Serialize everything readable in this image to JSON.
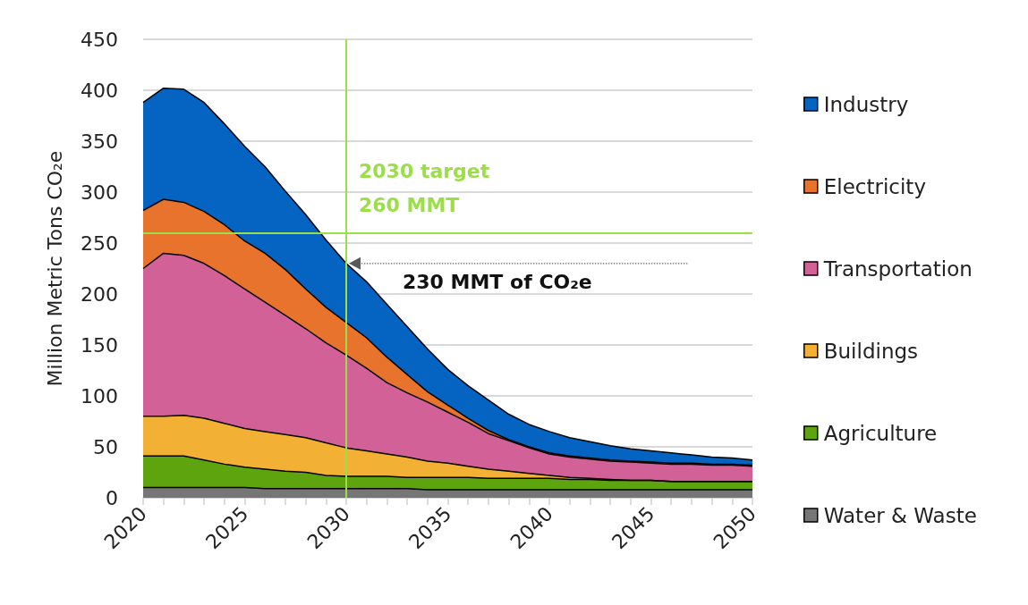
{
  "chart_data": {
    "type": "area",
    "stacked": true,
    "marker": "none",
    "grid": "y",
    "legend": "right",
    "ylabel": "Million Metric Tons CO₂e",
    "x": [
      2020,
      2021,
      2022,
      2023,
      2024,
      2025,
      2026,
      2027,
      2028,
      2029,
      2030,
      2031,
      2032,
      2033,
      2034,
      2035,
      2036,
      2037,
      2038,
      2039,
      2040,
      2041,
      2042,
      2043,
      2044,
      2045,
      2046,
      2047,
      2048,
      2049,
      2050
    ],
    "xlim": [
      2020,
      2050
    ],
    "xticks": [
      2020,
      2025,
      2030,
      2035,
      2040,
      2045,
      2050
    ],
    "ylim": [
      0,
      450
    ],
    "yticks": [
      0,
      50,
      100,
      150,
      200,
      250,
      300,
      350,
      400,
      450
    ],
    "series": [
      {
        "name": "Water & Waste",
        "color": "#767676",
        "values": [
          10,
          10,
          10,
          10,
          10,
          10,
          9,
          9,
          9,
          9,
          9,
          9,
          9,
          9,
          8,
          8,
          8,
          8,
          8,
          8,
          8,
          8,
          8,
          8,
          8,
          8,
          8,
          8,
          8,
          8,
          8
        ]
      },
      {
        "name": "Agriculture",
        "color": "#5ea40f",
        "values": [
          31,
          31,
          31,
          27,
          23,
          20,
          19,
          17,
          16,
          13,
          12,
          12,
          12,
          11,
          12,
          12,
          12,
          11,
          11,
          11,
          11,
          10,
          10,
          9,
          9,
          9,
          8,
          8,
          8,
          8,
          8
        ]
      },
      {
        "name": "Buildings",
        "color": "#f2b035",
        "values": [
          39,
          39,
          40,
          41,
          40,
          38,
          37,
          36,
          34,
          32,
          28,
          25,
          22,
          20,
          16,
          14,
          11,
          9,
          7,
          5,
          3,
          2,
          1,
          1,
          0,
          0,
          0,
          0,
          0,
          0,
          0
        ]
      },
      {
        "name": "Transportation",
        "color": "#d16197",
        "values": [
          145,
          160,
          157,
          152,
          145,
          137,
          127,
          117,
          107,
          98,
          91,
          81,
          70,
          63,
          58,
          50,
          43,
          35,
          30,
          25,
          21,
          20,
          19,
          18,
          18,
          17,
          17,
          17,
          16,
          16,
          15
        ]
      },
      {
        "name": "Electricity",
        "color": "#e7732c",
        "values": [
          57,
          53,
          52,
          51,
          50,
          47,
          48,
          45,
          39,
          35,
          32,
          30,
          25,
          18,
          10,
          7,
          4,
          3,
          1,
          1,
          1,
          1,
          1,
          1,
          1,
          1,
          1,
          1,
          1,
          1,
          1
        ]
      },
      {
        "name": "Industry",
        "color": "#0563c1",
        "values": [
          106,
          109,
          111,
          107,
          99,
          93,
          85,
          77,
          73,
          66,
          58,
          55,
          52,
          47,
          42,
          35,
          32,
          30,
          25,
          22,
          21,
          18,
          16,
          14,
          12,
          11,
          10,
          8,
          7,
          6,
          5
        ]
      }
    ],
    "ref_lines": [
      {
        "axis": "x",
        "value": 2030,
        "color": "#9bde4a"
      },
      {
        "axis": "y",
        "value": 260,
        "label": "2030 target\n260 MMT",
        "color": "#9bde4a"
      }
    ],
    "annotations": [
      {
        "text": "230 MMT of CO₂e",
        "x": 2030,
        "y": 230
      }
    ]
  }
}
